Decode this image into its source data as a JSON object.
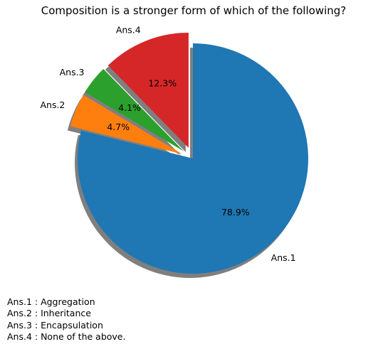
{
  "chart_data": {
    "type": "pie",
    "title": "Composition is a stronger form of which of the following?",
    "labels": [
      "Ans.1",
      "Ans.2",
      "Ans.3",
      "Ans.4"
    ],
    "values": [
      78.9,
      4.7,
      4.1,
      12.3
    ],
    "pct_labels": [
      "78.9%",
      "4.7%",
      "4.1%",
      "12.3%"
    ],
    "colors": [
      "#1f77b4",
      "#ff7f0e",
      "#2ca02c",
      "#d62728"
    ],
    "start_angle_deg": 90,
    "direction": "clockwise",
    "exploded": [
      false,
      true,
      true,
      true
    ],
    "shadow": true
  },
  "answer_key": [
    "Ans.1 : Aggregation",
    "Ans.2 : Inheritance",
    "Ans.3 : Encapsulation",
    "Ans.4 : None of the above."
  ]
}
